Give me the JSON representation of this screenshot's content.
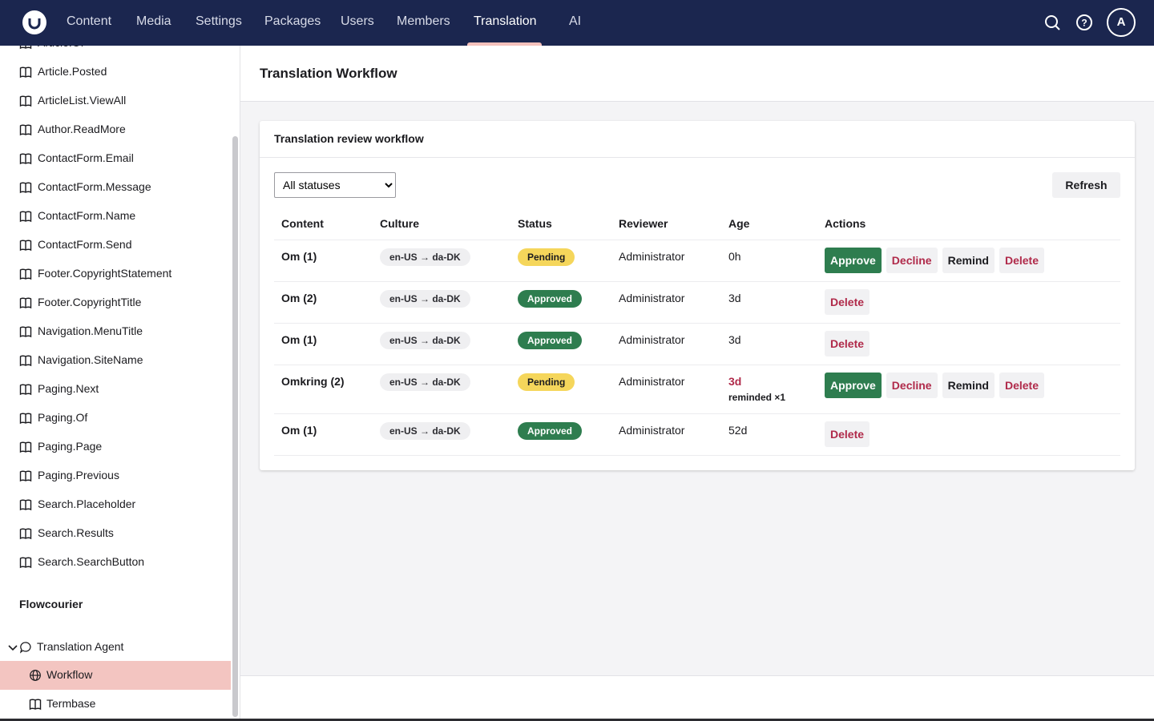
{
  "nav": {
    "items": [
      "Content",
      "Media",
      "Settings",
      "Packages",
      "Users",
      "Members",
      "Translation",
      "AI"
    ],
    "active": 6,
    "avatar": "A"
  },
  "sidebar": {
    "items": [
      "Article.Of",
      "Article.Posted",
      "ArticleList.ViewAll",
      "Author.ReadMore",
      "ContactForm.Email",
      "ContactForm.Message",
      "ContactForm.Name",
      "ContactForm.Send",
      "Footer.CopyrightStatement",
      "Footer.CopyrightTitle",
      "Navigation.MenuTitle",
      "Navigation.SiteName",
      "Paging.Next",
      "Paging.Of",
      "Paging.Page",
      "Paging.Previous",
      "Search.Placeholder",
      "Search.Results",
      "Search.SearchButton"
    ],
    "section": "Flowcourier",
    "tree": {
      "parent": "Translation Agent",
      "children": [
        "Workflow",
        "Termbase"
      ],
      "selected": 0
    }
  },
  "header": {
    "title": "Translation Workflow"
  },
  "panel": {
    "title": "Translation review workflow",
    "filter": "All statuses",
    "refresh": "Refresh",
    "columns": [
      "Content",
      "Culture",
      "Status",
      "Reviewer",
      "Age",
      "Actions"
    ],
    "rows": [
      {
        "content": "Om (1)",
        "culture": "en-US → da-DK",
        "status": "Pending",
        "reviewer": "Administrator",
        "age": "0h",
        "actions": [
          "Approve",
          "Decline",
          "Remind",
          "Delete"
        ]
      },
      {
        "content": "Om (2)",
        "culture": "en-US → da-DK",
        "status": "Approved",
        "reviewer": "Administrator",
        "age": "3d",
        "actions": [
          "Delete"
        ]
      },
      {
        "content": "Om (1)",
        "culture": "en-US → da-DK",
        "status": "Approved",
        "reviewer": "Administrator",
        "age": "3d",
        "actions": [
          "Delete"
        ]
      },
      {
        "content": "Omkring (2)",
        "culture": "en-US → da-DK",
        "status": "Pending",
        "reviewer": "Administrator",
        "age": "3d",
        "age_overdue": true,
        "note": "reminded ×1",
        "actions": [
          "Approve",
          "Decline",
          "Remind",
          "Delete"
        ]
      },
      {
        "content": "Om (1)",
        "culture": "en-US → da-DK",
        "status": "Approved",
        "reviewer": "Administrator",
        "age": "52d",
        "actions": [
          "Delete"
        ]
      }
    ]
  }
}
